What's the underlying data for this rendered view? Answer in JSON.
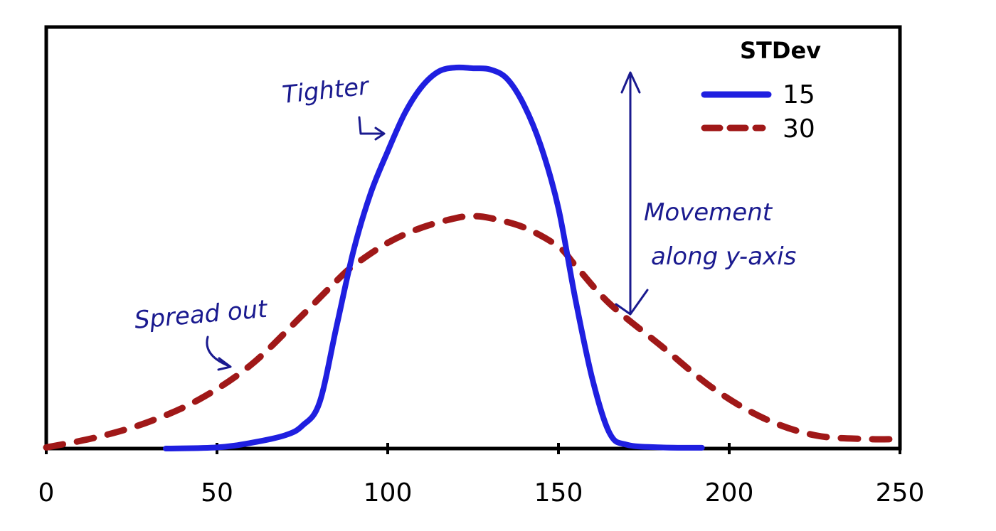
{
  "chart_data": {
    "type": "line",
    "xlim": [
      0,
      250
    ],
    "xticks": [
      "0",
      "50",
      "100",
      "150",
      "200",
      "250"
    ],
    "xtick_values": [
      0,
      50,
      100,
      150,
      200,
      250
    ],
    "grid": false,
    "legend": {
      "title": "STDev",
      "position": "top-right"
    },
    "series": [
      {
        "name": "15",
        "color": "#1f1fe0",
        "style": "solid",
        "x": [
          35,
          50,
          60,
          70,
          75,
          80,
          85,
          90,
          95,
          100,
          105,
          110,
          115,
          120,
          125,
          130,
          135,
          140,
          145,
          150,
          155,
          160,
          165,
          170,
          180,
          192
        ],
        "y": [
          0.0,
          0.3,
          1.5,
          3.5,
          6.0,
          12.0,
          32.0,
          52.0,
          67.0,
          78.0,
          88.0,
          95.0,
          99.0,
          100.0,
          99.8,
          99.5,
          97.0,
          90.0,
          79.0,
          63.0,
          39.0,
          18.0,
          4.0,
          1.0,
          0.3,
          0.2
        ]
      },
      {
        "name": "30",
        "color": "#a01818",
        "style": "dashed",
        "x": [
          0,
          15,
          30,
          45,
          60,
          75,
          85,
          90,
          100,
          110,
          120,
          125,
          130,
          140,
          150,
          155,
          165,
          180,
          195,
          210,
          225,
          240,
          250
        ],
        "y": [
          0.3,
          3.0,
          7.0,
          13.0,
          22.0,
          35.0,
          44.0,
          48.0,
          54.0,
          58.0,
          60.5,
          61.0,
          60.5,
          58.0,
          53.0,
          48.0,
          38.0,
          27.0,
          16.0,
          8.0,
          3.5,
          2.5,
          2.5
        ]
      }
    ],
    "annotations": [
      {
        "text": "Tighter"
      },
      {
        "text": "Spread out"
      },
      {
        "text": "Movement"
      },
      {
        "text": "along y-axis"
      }
    ]
  }
}
